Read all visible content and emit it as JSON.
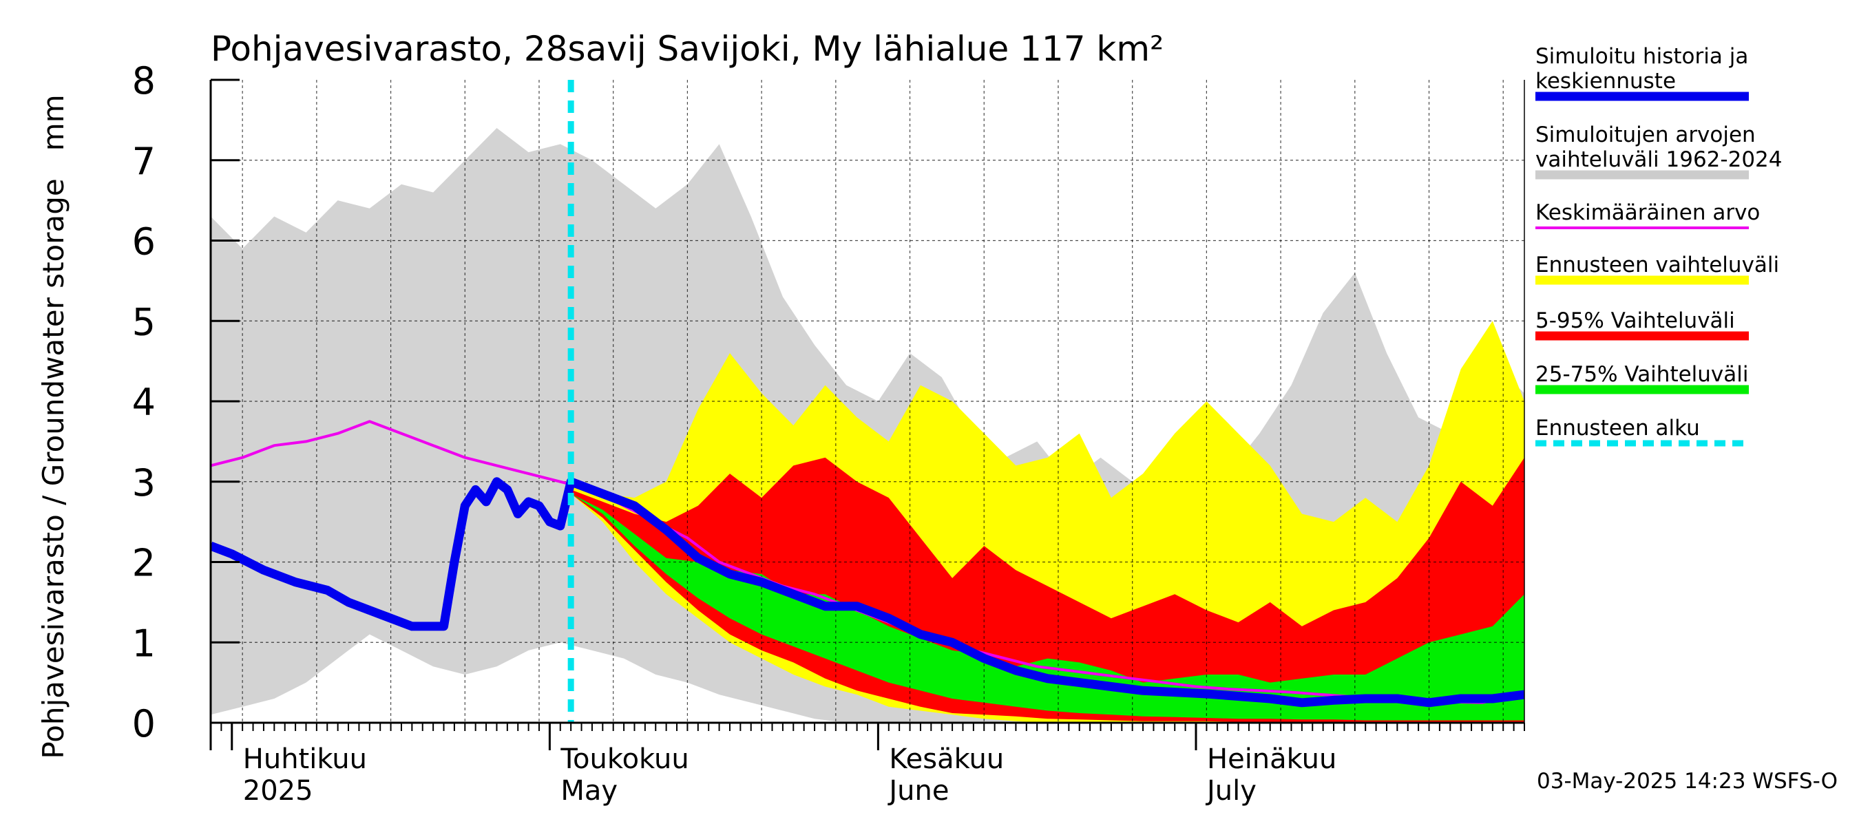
{
  "chart_data": {
    "type": "area",
    "title": "Pohjavesivarasto, 28savij Savijoki, My lähialue 117 km²",
    "ylabel": "Pohjavesivarasto / Groundwater storage   mm",
    "ylim": [
      0,
      8
    ],
    "yticks": [
      0,
      1,
      2,
      3,
      4,
      5,
      6,
      7,
      8
    ],
    "xlim": [
      "2025-03-30",
      "2025-08-01"
    ],
    "month_labels": [
      {
        "date": "2025-04-01",
        "fi": "Huhtikuu",
        "en": "2025"
      },
      {
        "date": "2025-05-01",
        "fi": "Toukokuu",
        "en": "May"
      },
      {
        "date": "2025-06-01",
        "fi": "Kesäkuu",
        "en": "June"
      },
      {
        "date": "2025-07-01",
        "fi": "Heinäkuu",
        "en": "July"
      }
    ],
    "forecast_start": "2025-05-03",
    "footer": "03-May-2025 14:23 WSFS-O",
    "legend": [
      {
        "label": "Simuloitu historia ja\nkeskiennuste",
        "color": "#0000ee",
        "style": "thick"
      },
      {
        "label": "Simuloitujen arvojen\nvaihteluväli 1962-2024",
        "color": "#cccccc",
        "style": "thick"
      },
      {
        "label": "Keskimääräinen arvo",
        "color": "#ee00ee",
        "style": "thin"
      },
      {
        "label": "Ennusteen vaihteluväli",
        "color": "#ffff00",
        "style": "thick"
      },
      {
        "label": "5-95% Vaihteluväli",
        "color": "#ff0000",
        "style": "thick"
      },
      {
        "label": "25-75% Vaihteluväli",
        "color": "#00ee00",
        "style": "thick"
      },
      {
        "label": "Ennusteen alku",
        "color": "#00e5ee",
        "style": "dashed"
      }
    ],
    "series": [
      {
        "name": "Simuloitujen arvojen vaihteluväli 1962-2024",
        "kind": "band",
        "color": "#d3d3d3",
        "x": [
          "2025-03-30",
          "2025-04-02",
          "2025-04-05",
          "2025-04-08",
          "2025-04-11",
          "2025-04-14",
          "2025-04-17",
          "2025-04-20",
          "2025-04-23",
          "2025-04-26",
          "2025-04-29",
          "2025-05-02",
          "2025-05-05",
          "2025-05-08",
          "2025-05-11",
          "2025-05-14",
          "2025-05-17",
          "2025-05-20",
          "2025-05-23",
          "2025-05-26",
          "2025-05-29",
          "2025-06-01",
          "2025-06-04",
          "2025-06-07",
          "2025-06-10",
          "2025-06-13",
          "2025-06-16",
          "2025-06-19",
          "2025-06-22",
          "2025-06-25",
          "2025-06-28",
          "2025-07-01",
          "2025-07-04",
          "2025-07-07",
          "2025-07-10",
          "2025-07-13",
          "2025-07-16",
          "2025-07-19",
          "2025-07-22",
          "2025-07-25",
          "2025-07-28",
          "2025-08-01"
        ],
        "upper": [
          6.3,
          5.9,
          6.3,
          6.1,
          6.5,
          6.4,
          6.7,
          6.6,
          7.0,
          7.4,
          7.1,
          7.2,
          7.0,
          6.7,
          6.4,
          6.7,
          7.2,
          6.3,
          5.3,
          4.7,
          4.2,
          4.0,
          4.6,
          4.3,
          3.6,
          3.3,
          3.5,
          3.0,
          3.3,
          3.0,
          3.0,
          2.5,
          3.1,
          3.6,
          4.2,
          5.1,
          5.6,
          4.6,
          3.8,
          3.6,
          4.6,
          4.1
        ],
        "lower": [
          0.1,
          0.2,
          0.3,
          0.5,
          0.8,
          1.1,
          0.9,
          0.7,
          0.6,
          0.7,
          0.9,
          1.0,
          0.9,
          0.8,
          0.6,
          0.5,
          0.35,
          0.25,
          0.15,
          0.05,
          0.0,
          0.0,
          0.0,
          0.0,
          0.0,
          0.0,
          0.0,
          0.0,
          0.0,
          0.0,
          0.0,
          0.0,
          0.0,
          0.0,
          0.0,
          0.0,
          0.0,
          0.0,
          0.0,
          0.0,
          0.0,
          0.0
        ]
      },
      {
        "name": "Ennusteen vaihteluväli",
        "kind": "band",
        "color": "#ffff00",
        "x": [
          "2025-05-03",
          "2025-05-06",
          "2025-05-09",
          "2025-05-12",
          "2025-05-15",
          "2025-05-18",
          "2025-05-21",
          "2025-05-24",
          "2025-05-27",
          "2025-05-30",
          "2025-06-02",
          "2025-06-05",
          "2025-06-08",
          "2025-06-11",
          "2025-06-14",
          "2025-06-17",
          "2025-06-20",
          "2025-06-23",
          "2025-06-26",
          "2025-06-29",
          "2025-07-02",
          "2025-07-05",
          "2025-07-08",
          "2025-07-11",
          "2025-07-14",
          "2025-07-17",
          "2025-07-20",
          "2025-07-23",
          "2025-07-26",
          "2025-07-29",
          "2025-08-01"
        ],
        "upper": [
          2.95,
          2.85,
          2.8,
          3.0,
          3.9,
          4.6,
          4.1,
          3.7,
          4.2,
          3.8,
          3.5,
          4.2,
          4.0,
          3.6,
          3.2,
          3.3,
          3.6,
          2.8,
          3.1,
          3.6,
          4.0,
          3.6,
          3.2,
          2.6,
          2.5,
          2.8,
          2.5,
          3.2,
          4.4,
          5.0,
          4.0
        ],
        "lower": [
          2.85,
          2.5,
          2.0,
          1.6,
          1.3,
          1.0,
          0.8,
          0.6,
          0.45,
          0.35,
          0.2,
          0.15,
          0.1,
          0.05,
          0.02,
          0.0,
          0.0,
          0.0,
          0.0,
          0.0,
          0.0,
          0.0,
          0.0,
          0.0,
          0.0,
          0.0,
          0.0,
          0.0,
          0.0,
          0.0,
          0.0
        ]
      },
      {
        "name": "5-95% Vaihteluväli",
        "kind": "band",
        "color": "#ff0000",
        "x": [
          "2025-05-03",
          "2025-05-06",
          "2025-05-09",
          "2025-05-12",
          "2025-05-15",
          "2025-05-18",
          "2025-05-21",
          "2025-05-24",
          "2025-05-27",
          "2025-05-30",
          "2025-06-02",
          "2025-06-05",
          "2025-06-08",
          "2025-06-11",
          "2025-06-14",
          "2025-06-17",
          "2025-06-20",
          "2025-06-23",
          "2025-06-26",
          "2025-06-29",
          "2025-07-02",
          "2025-07-05",
          "2025-07-08",
          "2025-07-11",
          "2025-07-14",
          "2025-07-17",
          "2025-07-20",
          "2025-07-23",
          "2025-07-26",
          "2025-07-29",
          "2025-08-01"
        ],
        "upper": [
          2.9,
          2.75,
          2.6,
          2.5,
          2.7,
          3.1,
          2.8,
          3.2,
          3.3,
          3.0,
          2.8,
          2.3,
          1.8,
          2.2,
          1.9,
          1.7,
          1.5,
          1.3,
          1.45,
          1.6,
          1.4,
          1.25,
          1.5,
          1.2,
          1.4,
          1.5,
          1.8,
          2.3,
          3.0,
          2.7,
          3.3
        ],
        "lower": [
          2.85,
          2.55,
          2.15,
          1.75,
          1.4,
          1.1,
          0.9,
          0.75,
          0.55,
          0.4,
          0.3,
          0.2,
          0.12,
          0.1,
          0.08,
          0.05,
          0.04,
          0.03,
          0.02,
          0.02,
          0.02,
          0.01,
          0.01,
          0.01,
          0.01,
          0.01,
          0.01,
          0.01,
          0.01,
          0.01,
          0.01
        ]
      },
      {
        "name": "25-75% Vaihteluväli",
        "kind": "band",
        "color": "#00ee00",
        "x": [
          "2025-05-03",
          "2025-05-06",
          "2025-05-09",
          "2025-05-12",
          "2025-05-15",
          "2025-05-18",
          "2025-05-21",
          "2025-05-24",
          "2025-05-27",
          "2025-05-30",
          "2025-06-02",
          "2025-06-05",
          "2025-06-08",
          "2025-06-11",
          "2025-06-14",
          "2025-06-17",
          "2025-06-20",
          "2025-06-23",
          "2025-06-26",
          "2025-06-29",
          "2025-07-02",
          "2025-07-05",
          "2025-07-08",
          "2025-07-11",
          "2025-07-14",
          "2025-07-17",
          "2025-07-20",
          "2025-07-23",
          "2025-07-26",
          "2025-07-29",
          "2025-08-01"
        ],
        "upper": [
          2.85,
          2.65,
          2.35,
          2.05,
          2.0,
          1.9,
          1.85,
          1.6,
          1.6,
          1.4,
          1.2,
          1.05,
          0.9,
          0.85,
          0.7,
          0.8,
          0.75,
          0.65,
          0.5,
          0.55,
          0.6,
          0.6,
          0.5,
          0.55,
          0.6,
          0.6,
          0.8,
          1.0,
          1.1,
          1.2,
          1.6
        ],
        "lower": [
          2.85,
          2.6,
          2.2,
          1.85,
          1.55,
          1.3,
          1.1,
          0.95,
          0.8,
          0.65,
          0.5,
          0.4,
          0.3,
          0.25,
          0.2,
          0.15,
          0.12,
          0.1,
          0.08,
          0.07,
          0.06,
          0.05,
          0.05,
          0.04,
          0.04,
          0.03,
          0.03,
          0.03,
          0.03,
          0.03,
          0.03
        ]
      },
      {
        "name": "Keskimääräinen arvo",
        "kind": "line",
        "color": "#ee00ee",
        "x": [
          "2025-03-30",
          "2025-04-02",
          "2025-04-05",
          "2025-04-08",
          "2025-04-11",
          "2025-04-14",
          "2025-04-17",
          "2025-04-20",
          "2025-04-23",
          "2025-04-26",
          "2025-04-29",
          "2025-05-02",
          "2025-05-05",
          "2025-05-08",
          "2025-05-11",
          "2025-05-14",
          "2025-05-17",
          "2025-05-20",
          "2025-05-23",
          "2025-05-26",
          "2025-05-29",
          "2025-06-01",
          "2025-06-04",
          "2025-06-07",
          "2025-06-10",
          "2025-06-13",
          "2025-06-16",
          "2025-06-19",
          "2025-06-22",
          "2025-06-25",
          "2025-06-28",
          "2025-07-01",
          "2025-07-04",
          "2025-07-07",
          "2025-07-10",
          "2025-07-13",
          "2025-07-16",
          "2025-07-19",
          "2025-07-22",
          "2025-07-25",
          "2025-07-28",
          "2025-08-01"
        ],
        "values": [
          3.2,
          3.3,
          3.45,
          3.5,
          3.6,
          3.75,
          3.6,
          3.45,
          3.3,
          3.2,
          3.1,
          3.0,
          2.9,
          2.7,
          2.5,
          2.3,
          2.0,
          1.85,
          1.7,
          1.6,
          1.45,
          1.3,
          1.15,
          1.0,
          0.9,
          0.8,
          0.7,
          0.65,
          0.6,
          0.55,
          0.5,
          0.45,
          0.42,
          0.4,
          0.38,
          0.35,
          0.32,
          0.3,
          0.28,
          0.26,
          0.25,
          0.35
        ]
      },
      {
        "name": "Simuloitu historia ja keskiennuste",
        "kind": "line",
        "color": "#0000ee",
        "x": [
          "2025-03-30",
          "2025-04-01",
          "2025-04-04",
          "2025-04-07",
          "2025-04-10",
          "2025-04-12",
          "2025-04-15",
          "2025-04-18",
          "2025-04-21",
          "2025-04-22",
          "2025-04-23",
          "2025-04-24",
          "2025-04-25",
          "2025-04-26",
          "2025-04-27",
          "2025-04-28",
          "2025-04-29",
          "2025-04-30",
          "2025-05-01",
          "2025-05-02",
          "2025-05-03",
          "2025-05-06",
          "2025-05-09",
          "2025-05-12",
          "2025-05-15",
          "2025-05-18",
          "2025-05-21",
          "2025-05-24",
          "2025-05-27",
          "2025-05-30",
          "2025-06-02",
          "2025-06-05",
          "2025-06-08",
          "2025-06-11",
          "2025-06-14",
          "2025-06-17",
          "2025-06-20",
          "2025-06-23",
          "2025-06-26",
          "2025-06-29",
          "2025-07-02",
          "2025-07-05",
          "2025-07-08",
          "2025-07-11",
          "2025-07-14",
          "2025-07-17",
          "2025-07-20",
          "2025-07-23",
          "2025-07-26",
          "2025-07-29",
          "2025-08-01"
        ],
        "values": [
          2.2,
          2.1,
          1.9,
          1.75,
          1.65,
          1.5,
          1.35,
          1.2,
          1.2,
          2.0,
          2.7,
          2.9,
          2.75,
          3.0,
          2.9,
          2.6,
          2.75,
          2.7,
          2.5,
          2.45,
          3.0,
          2.85,
          2.7,
          2.4,
          2.05,
          1.85,
          1.75,
          1.6,
          1.45,
          1.45,
          1.3,
          1.1,
          1.0,
          0.8,
          0.65,
          0.55,
          0.5,
          0.45,
          0.4,
          0.38,
          0.36,
          0.33,
          0.3,
          0.25,
          0.28,
          0.3,
          0.3,
          0.25,
          0.3,
          0.3,
          0.35
        ]
      }
    ]
  }
}
